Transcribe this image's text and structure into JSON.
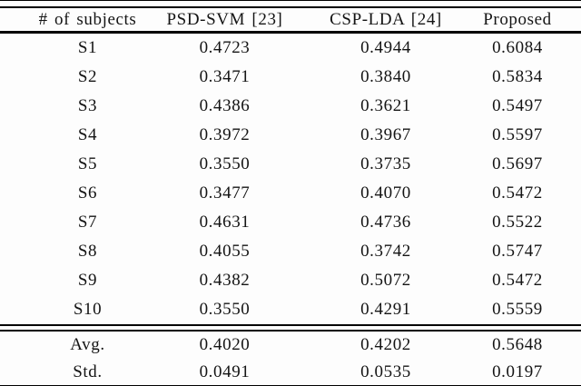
{
  "table": {
    "columns": [
      "# of subjects",
      "PSD-SVM [23]",
      "CSP-LDA [24]",
      "Proposed"
    ],
    "rows": [
      {
        "label": "S1",
        "values": [
          "0.4723",
          "0.4944",
          "0.6084"
        ]
      },
      {
        "label": "S2",
        "values": [
          "0.3471",
          "0.3840",
          "0.5834"
        ]
      },
      {
        "label": "S3",
        "values": [
          "0.4386",
          "0.3621",
          "0.5497"
        ]
      },
      {
        "label": "S4",
        "values": [
          "0.3972",
          "0.3967",
          "0.5597"
        ]
      },
      {
        "label": "S5",
        "values": [
          "0.3550",
          "0.3735",
          "0.5697"
        ]
      },
      {
        "label": "S6",
        "values": [
          "0.3477",
          "0.4070",
          "0.5472"
        ]
      },
      {
        "label": "S7",
        "values": [
          "0.4631",
          "0.4736",
          "0.5522"
        ]
      },
      {
        "label": "S8",
        "values": [
          "0.4055",
          "0.3742",
          "0.5747"
        ]
      },
      {
        "label": "S9",
        "values": [
          "0.4382",
          "0.5072",
          "0.5472"
        ]
      },
      {
        "label": "S10",
        "values": [
          "0.3550",
          "0.4291",
          "0.5559"
        ]
      }
    ],
    "summary": [
      {
        "label": "Avg.",
        "values": [
          "0.4020",
          "0.4202",
          "0.5648"
        ]
      },
      {
        "label": "Std.",
        "values": [
          "0.0491",
          "0.0535",
          "0.0197"
        ]
      }
    ]
  },
  "colors": {
    "text": "#141414",
    "rule": "#000000",
    "background": "#fdfdfd"
  }
}
